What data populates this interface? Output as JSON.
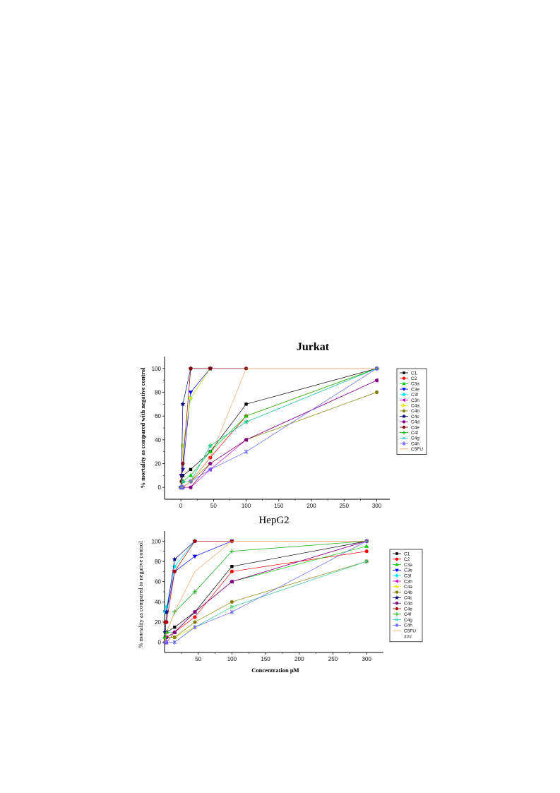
{
  "chart_data": [
    {
      "type": "line",
      "title": "Jurkat",
      "xlabel": "",
      "ylabel": "% mortality as compared with negative control",
      "xlim": [
        -25,
        320
      ],
      "ylim": [
        -10,
        110
      ],
      "xticks": [
        0,
        50,
        100,
        150,
        200,
        250,
        300
      ],
      "yticks": [
        0,
        20,
        40,
        60,
        80,
        100
      ],
      "legend_position": "right",
      "grid": false,
      "series": [
        {
          "name": "C1",
          "color": "#000000",
          "marker": "square",
          "x": [
            0,
            1,
            3,
            15,
            45,
            100,
            300
          ],
          "y": [
            0,
            5,
            10,
            15,
            30,
            70,
            100
          ]
        },
        {
          "name": "C2",
          "color": "#ff0000",
          "marker": "circle",
          "x": [
            0,
            1,
            3,
            15,
            45,
            100,
            300
          ],
          "y": [
            0,
            0,
            5,
            5,
            25,
            60,
            100
          ]
        },
        {
          "name": "C3a",
          "color": "#00cc00",
          "marker": "triangle",
          "x": [
            0,
            1,
            3,
            15,
            45,
            100,
            300
          ],
          "y": [
            0,
            0,
            5,
            10,
            30,
            60,
            100
          ]
        },
        {
          "name": "C3e",
          "color": "#0000ff",
          "marker": "triangle-down",
          "x": [
            0,
            1,
            3,
            15,
            45
          ],
          "y": [
            0,
            10,
            15,
            80,
            100
          ]
        },
        {
          "name": "C3f",
          "color": "#00e5ee",
          "marker": "diamond",
          "x": [
            0,
            1,
            3,
            15,
            45
          ],
          "y": [
            0,
            5,
            35,
            75,
            100
          ]
        },
        {
          "name": "C3h",
          "color": "#cc00cc",
          "marker": "triangle-left",
          "x": [
            0,
            1,
            3,
            15,
            45,
            100,
            300
          ],
          "y": [
            0,
            0,
            0,
            0,
            15,
            40,
            90
          ]
        },
        {
          "name": "C4a",
          "color": "#e6e600",
          "marker": "triangle-right",
          "x": [
            0,
            1,
            3,
            15,
            45
          ],
          "y": [
            0,
            5,
            35,
            75,
            100
          ]
        },
        {
          "name": "C4b",
          "color": "#808000",
          "marker": "circle",
          "x": [
            0,
            1,
            3,
            15,
            45,
            100,
            300
          ],
          "y": [
            0,
            0,
            0,
            5,
            20,
            40,
            80
          ]
        },
        {
          "name": "C4c",
          "color": "#000080",
          "marker": "star",
          "x": [
            0,
            1,
            3,
            15,
            45
          ],
          "y": [
            0,
            10,
            70,
            100,
            100
          ]
        },
        {
          "name": "C4d",
          "color": "#800080",
          "marker": "circle",
          "x": [
            0,
            1,
            3,
            15,
            45,
            100,
            300
          ],
          "y": [
            0,
            0,
            0,
            0,
            20,
            40,
            90
          ]
        },
        {
          "name": "C4e",
          "color": "#800000",
          "marker": "circle",
          "x": [
            0,
            1,
            3,
            15,
            45,
            100,
            300
          ],
          "y": [
            0,
            5,
            20,
            100,
            100,
            100,
            100
          ]
        },
        {
          "name": "C4f",
          "color": "#00aa00",
          "marker": "plus",
          "x": [
            0,
            1,
            3,
            15,
            45,
            100,
            300
          ],
          "y": [
            0,
            0,
            5,
            5,
            35,
            55,
            100
          ]
        },
        {
          "name": "C4g",
          "color": "#33cccc",
          "marker": "x",
          "x": [
            0,
            1,
            3,
            15,
            45,
            100,
            300
          ],
          "y": [
            0,
            0,
            5,
            5,
            35,
            55,
            100
          ]
        },
        {
          "name": "C4h",
          "color": "#6666ff",
          "marker": "asterisk",
          "x": [
            0,
            1,
            3,
            15,
            45,
            100,
            300
          ],
          "y": [
            0,
            0,
            0,
            5,
            15,
            30,
            100
          ]
        },
        {
          "name": "C5FU",
          "color": "#f4a460",
          "marker": "none",
          "x": [
            0,
            1,
            3,
            15,
            45,
            100,
            300
          ],
          "y": [
            0,
            0,
            0,
            5,
            25,
            100,
            100
          ]
        }
      ]
    },
    {
      "type": "line",
      "title": "HepG2",
      "xlabel": "Concentration μM",
      "ylabel": "% mortality as compared to negative control",
      "xlim": [
        0,
        325
      ],
      "ylim": [
        -10,
        110
      ],
      "xticks": [
        50,
        100,
        150,
        200,
        250,
        300
      ],
      "xtick_labels": [
        "50",
        "100",
        "150",
        "200",
        "250",
        "300"
      ],
      "yticks": [
        0,
        20,
        40,
        60,
        80,
        100
      ],
      "legend_position": "right",
      "grid": false,
      "series": [
        {
          "name": "C1",
          "color": "#000000",
          "marker": "square",
          "x": [
            1,
            3,
            15,
            45,
            100,
            300
          ],
          "y": [
            5,
            10,
            15,
            30,
            75,
            100
          ]
        },
        {
          "name": "C2",
          "color": "#ff0000",
          "marker": "circle",
          "x": [
            1,
            3,
            15,
            45,
            100,
            300
          ],
          "y": [
            0,
            5,
            10,
            25,
            70,
            90
          ]
        },
        {
          "name": "C3a",
          "color": "#00cc00",
          "marker": "triangle",
          "x": [
            1,
            3,
            15,
            45,
            100,
            300
          ],
          "y": [
            5,
            10,
            10,
            30,
            60,
            95
          ]
        },
        {
          "name": "C3e",
          "color": "#0000ff",
          "marker": "triangle-down",
          "x": [
            1,
            3,
            15,
            45,
            100
          ],
          "y": [
            30,
            30,
            70,
            85,
            100
          ]
        },
        {
          "name": "C3f",
          "color": "#00e5ee",
          "marker": "diamond",
          "x": [
            1,
            3,
            15,
            45
          ],
          "y": [
            30,
            35,
            75,
            100
          ]
        },
        {
          "name": "C3h",
          "color": "#cc00cc",
          "marker": "triangle-left",
          "x": [
            1,
            3,
            15,
            45,
            100,
            300
          ],
          "y": [
            0,
            0,
            10,
            30,
            60,
            100
          ]
        },
        {
          "name": "C4a",
          "color": "#e6e600",
          "marker": "triangle-right",
          "x": [
            1,
            3,
            15,
            45,
            100,
            300
          ],
          "y": [
            0,
            5,
            5,
            15,
            35,
            80
          ]
        },
        {
          "name": "C4b",
          "color": "#808000",
          "marker": "circle",
          "x": [
            1,
            3,
            15,
            45,
            100,
            300
          ],
          "y": [
            0,
            5,
            5,
            20,
            40,
            80
          ]
        },
        {
          "name": "C4c",
          "color": "#000080",
          "marker": "star",
          "x": [
            1,
            3,
            15,
            45
          ],
          "y": [
            10,
            30,
            82,
            100
          ]
        },
        {
          "name": "C4d",
          "color": "#800080",
          "marker": "circle",
          "x": [
            1,
            3,
            15,
            45,
            100,
            300
          ],
          "y": [
            0,
            5,
            10,
            30,
            60,
            100
          ]
        },
        {
          "name": "C4e",
          "color": "#aa0000",
          "marker": "circle",
          "x": [
            1,
            3,
            15,
            45,
            100,
            300
          ],
          "y": [
            20,
            20,
            70,
            100,
            100,
            100
          ]
        },
        {
          "name": "C4f",
          "color": "#00aa00",
          "marker": "plus",
          "x": [
            1,
            3,
            15,
            45,
            100,
            300
          ],
          "y": [
            5,
            10,
            30,
            50,
            90,
            100
          ]
        },
        {
          "name": "C4g",
          "color": "#33cccc",
          "marker": "x",
          "x": [
            1,
            3,
            15,
            45,
            100,
            300
          ],
          "y": [
            0,
            0,
            0,
            15,
            35,
            80
          ]
        },
        {
          "name": "C4h",
          "color": "#6666ff",
          "marker": "asterisk",
          "x": [
            1,
            3,
            15,
            45,
            100,
            300
          ],
          "y": [
            0,
            0,
            0,
            15,
            30,
            100
          ]
        },
        {
          "name": "C5FU",
          "color": "#f4a460",
          "marker": "none",
          "x": [
            1,
            3,
            15,
            45,
            100,
            300
          ],
          "y": [
            0,
            10,
            30,
            70,
            100,
            100
          ]
        }
      ],
      "extra_legend": [
        "###"
      ]
    }
  ]
}
